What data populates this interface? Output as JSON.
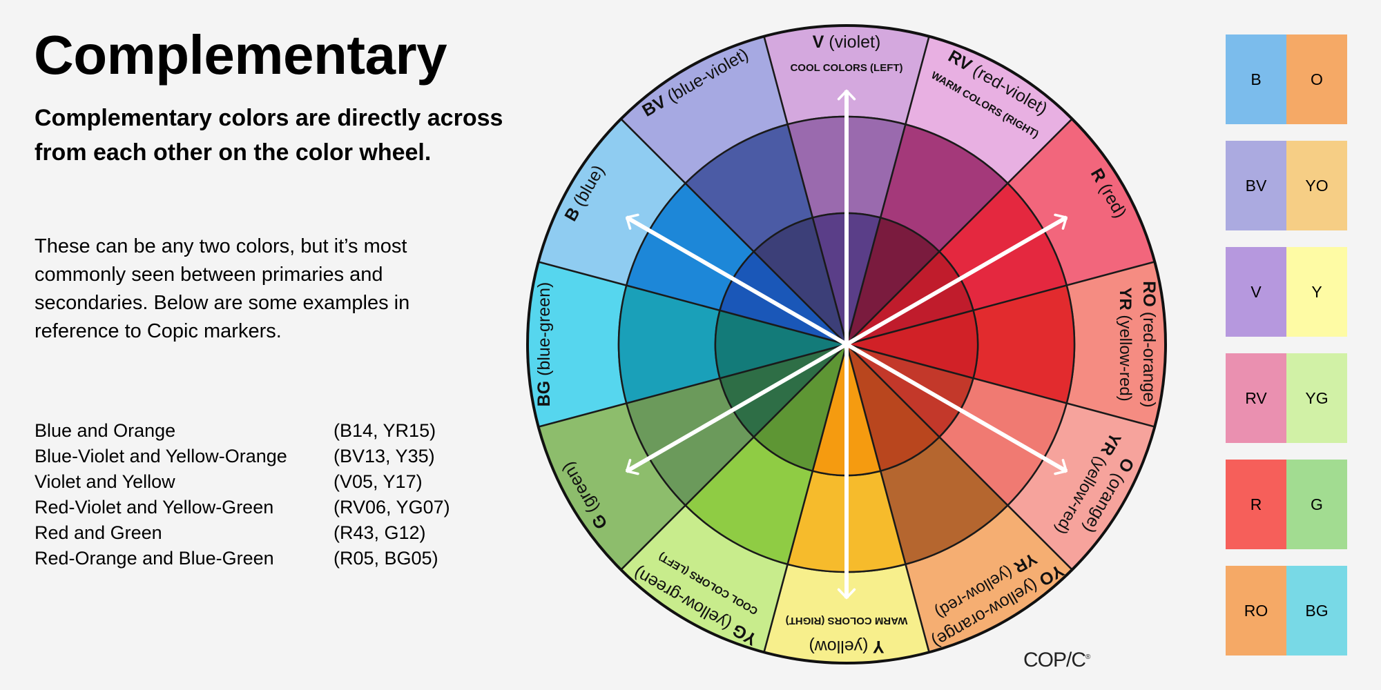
{
  "title": "Complementary",
  "subtitle": "Complementary colors are directly across from each other on the color wheel.",
  "paragraph": "These can be any two colors, but it’s most commonly seen between primaries and secondaries. Below are some examples in reference to Copic markers.",
  "pairs": [
    {
      "name": "Blue and Orange",
      "codes": "(B14, YR15)"
    },
    {
      "name": "Blue-Violet and Yellow-Orange",
      "codes": "(BV13, Y35)"
    },
    {
      "name": "Violet and Yellow",
      "codes": "(V05, Y17)"
    },
    {
      "name": "Red-Violet and Yellow-Green",
      "codes": "(RV06, YG07)"
    },
    {
      "name": "Red and Green",
      "codes": "(R43, G12)"
    },
    {
      "name": "Red-Orange and Blue-Green",
      "codes": "(R05, BG05)"
    }
  ],
  "wheel": {
    "segments": [
      {
        "code": "V",
        "name": "(violet)",
        "sub": "COOL COLORS (LEFT)",
        "colors": [
          "#d4a8de",
          "#9a6aae",
          "#5a3e88"
        ]
      },
      {
        "code": "RV",
        "name": "(red-violet)",
        "sub": "WARM COLORS (RIGHT)",
        "colors": [
          "#e8b0e2",
          "#a4397a",
          "#7a1b3e"
        ]
      },
      {
        "code": "R",
        "name": "(red)",
        "sub": "",
        "colors": [
          "#f2667c",
          "#e4283f",
          "#c01c2c"
        ]
      },
      {
        "code": "RO",
        "name": "(red-orange)",
        "sub": "YR (yellow-red)",
        "colors": [
          "#f58c82",
          "#e22b2e",
          "#d12127"
        ]
      },
      {
        "code": "O",
        "name": "(orange)",
        "sub": "YR (yellow-red)",
        "colors": [
          "#f6a39c",
          "#f07a72",
          "#c3382a"
        ]
      },
      {
        "code": "YO",
        "name": "(yellow-orange)",
        "sub": "YR (yellow-red)",
        "colors": [
          "#f5ae72",
          "#b5662f",
          "#b9461e"
        ]
      },
      {
        "code": "Y",
        "name": "(yellow)",
        "sub": "WARM COLORS (RIGHT)",
        "colors": [
          "#f7ef8c",
          "#f6bb2c",
          "#f59b10"
        ]
      },
      {
        "code": "YG",
        "name": "(yellow-green)",
        "sub": "COOL COLORS (LEFT)",
        "colors": [
          "#c8ec8c",
          "#8fcc44",
          "#5e9634"
        ]
      },
      {
        "code": "G",
        "name": "(green)",
        "sub": "",
        "colors": [
          "#8dbd6c",
          "#6b9a5b",
          "#2e6e46"
        ]
      },
      {
        "code": "BG",
        "name": "(blue-green)",
        "sub": "",
        "colors": [
          "#56d6ee",
          "#1aa0b9",
          "#137b79"
        ]
      },
      {
        "code": "B",
        "name": "(blue)",
        "sub": "",
        "colors": [
          "#8fccf1",
          "#1d87d8",
          "#1a57b8"
        ]
      },
      {
        "code": "BV",
        "name": "(blue-violet)",
        "sub": "",
        "colors": [
          "#a6a9e2",
          "#4b5ba5",
          "#3c3f78"
        ]
      }
    ],
    "arrow_color": "#ffffff"
  },
  "swatches": [
    [
      {
        "label": "B",
        "color": "#7bbcec"
      },
      {
        "label": "O",
        "color": "#f5a966"
      }
    ],
    [
      {
        "label": "BV",
        "color": "#abaae0"
      },
      {
        "label": "YO",
        "color": "#f6ce85"
      }
    ],
    [
      {
        "label": "V",
        "color": "#b698de"
      },
      {
        "label": "Y",
        "color": "#fefba4"
      }
    ],
    [
      {
        "label": "RV",
        "color": "#ea90b0"
      },
      {
        "label": "YG",
        "color": "#d1f1a6"
      }
    ],
    [
      {
        "label": "R",
        "color": "#f65f5a"
      },
      {
        "label": "G",
        "color": "#a2dc91"
      }
    ],
    [
      {
        "label": "RO",
        "color": "#f5a966"
      },
      {
        "label": "BG",
        "color": "#78d9e6"
      }
    ]
  ],
  "logo": "COPIC"
}
